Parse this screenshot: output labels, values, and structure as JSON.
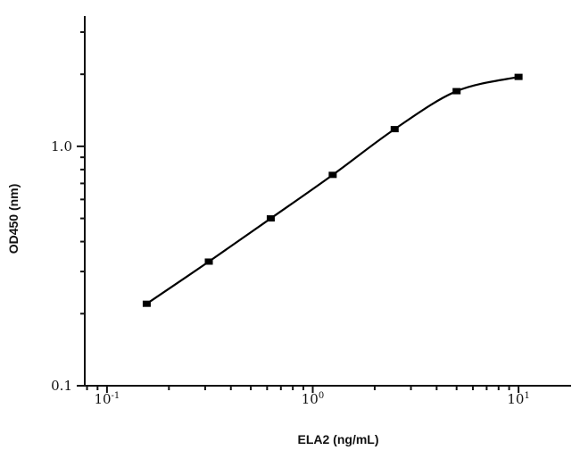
{
  "chart_data": {
    "type": "line",
    "title": "",
    "xlabel": "ELA2 (ng/mL)",
    "ylabel": "OD450 (nm)",
    "x_scale": "log",
    "y_scale": "log",
    "xlim": [
      0.078,
      18
    ],
    "ylim": [
      0.1,
      3.5
    ],
    "x_ticks": [
      {
        "value": 0.1,
        "base": "10",
        "exp": "-1"
      },
      {
        "value": 1,
        "base": "10",
        "exp": "0"
      },
      {
        "value": 10,
        "base": "10",
        "exp": "1"
      }
    ],
    "y_ticks": [
      {
        "value": 0.1,
        "label": "0.1"
      },
      {
        "value": 1.0,
        "label": "1.0"
      }
    ],
    "grid": false,
    "legend": "none",
    "series": [
      {
        "x": [
          0.156,
          0.3125,
          0.625,
          1.25,
          2.5,
          5,
          10
        ],
        "y": [
          0.22,
          0.33,
          0.5,
          0.76,
          1.18,
          1.7,
          1.95
        ],
        "marker": "square",
        "color": "#000000"
      }
    ]
  }
}
